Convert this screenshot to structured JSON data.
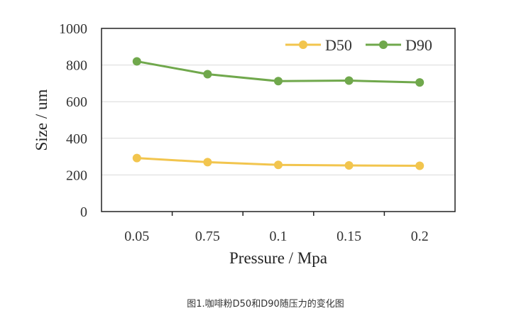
{
  "chart_data": {
    "type": "line",
    "title": "",
    "xlabel": "Pressure / Mpa",
    "ylabel": "Size / um",
    "categories": [
      "0.05",
      "0.75",
      "0.1",
      "0.15",
      "0.2"
    ],
    "ylim": [
      0,
      1000
    ],
    "yticks": [
      "0",
      "200",
      "400",
      "600",
      "800",
      "1000"
    ],
    "grid": true,
    "legend_position": "top-right",
    "series": [
      {
        "name": "D50",
        "values": [
          292,
          270,
          255,
          252,
          250
        ],
        "color": "#F2C54E"
      },
      {
        "name": "D90",
        "values": [
          820,
          750,
          712,
          715,
          705
        ],
        "color": "#70A84C"
      }
    ]
  },
  "caption": "图1.咖啡粉D50和D90随压力的变化图"
}
